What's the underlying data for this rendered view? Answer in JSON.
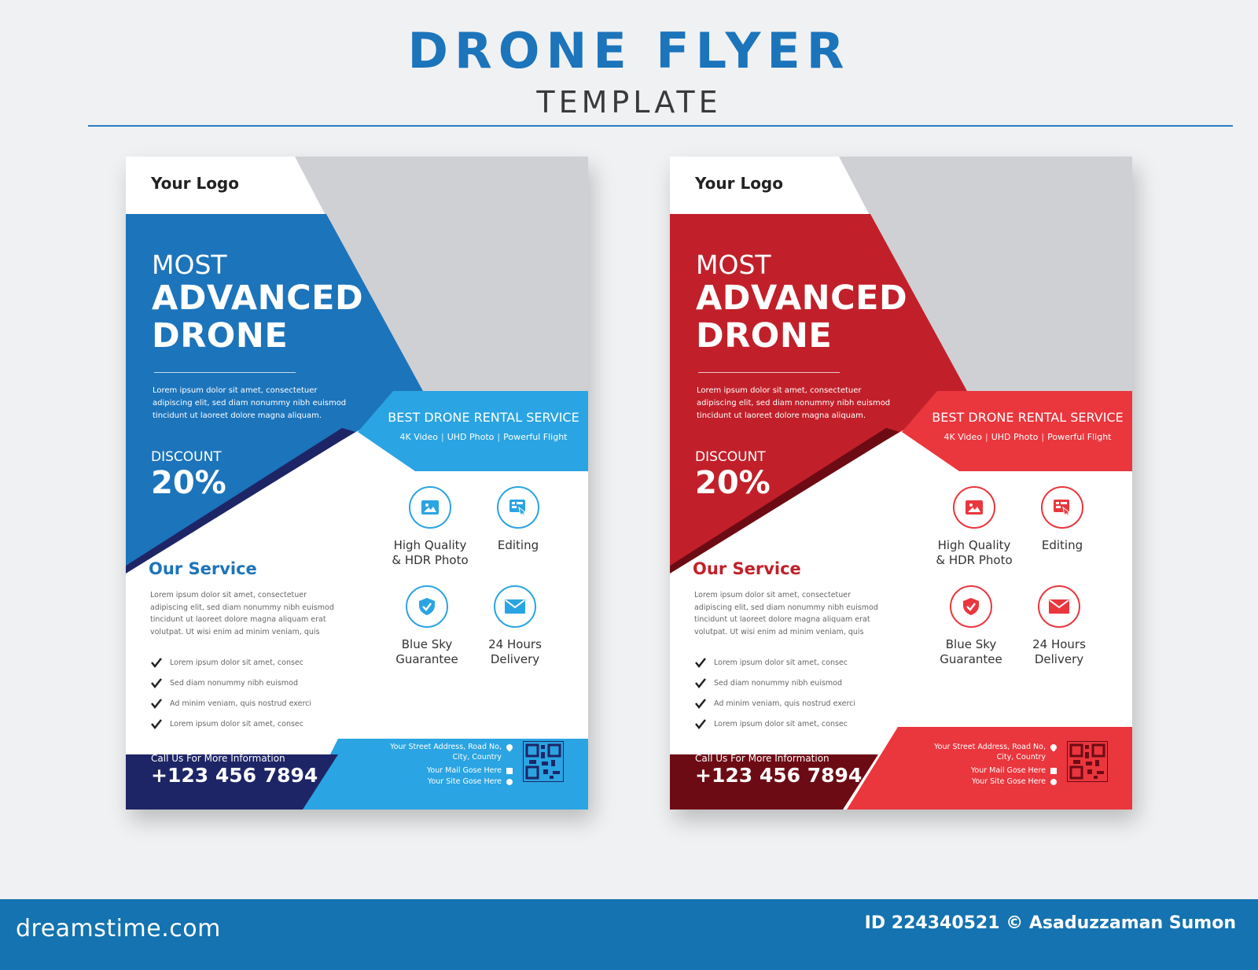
{
  "header": {
    "title": "DRONE FLYER",
    "subtitle": "TEMPLATE"
  },
  "colors": {
    "page_bg": "#f0f1f3",
    "header_blue": "#1c74bb",
    "footer_bar": "#1473b0",
    "blue_primary": "#1c74bb",
    "blue_light": "#2aa4e2",
    "blue_dark": "#1e2566",
    "red_primary": "#c1202a",
    "red_light": "#ea363d",
    "red_dark": "#6d0b15",
    "image_placeholder": "#cfd0d3"
  },
  "flyers": {
    "blue": {
      "logo": "Your Logo",
      "headline_1": "MOST",
      "headline_2": "ADVANCED",
      "headline_3": "DRONE",
      "intro": "Lorem ipsum dolor sit amet, consectetuer adipiscing elit, sed diam nonummy nibh euismod tincidunt ut laoreet dolore magna aliquam.",
      "discount_label": "DISCOUNT",
      "discount_value": "20%",
      "rental_title": "BEST DRONE RENTAL SERVICE",
      "rental_features": [
        "4K Video",
        "UHD Photo",
        "Powerful Flight"
      ],
      "services": [
        {
          "label_1": "High Quality",
          "label_2": "& HDR Photo",
          "icon": "photo-icon"
        },
        {
          "label_1": "Editing",
          "label_2": "",
          "icon": "editing-icon"
        },
        {
          "label_1": "Blue Sky",
          "label_2": "Guarantee",
          "icon": "shield-icon"
        },
        {
          "label_1": "24 Hours",
          "label_2": "Delivery",
          "icon": "envelope-icon"
        }
      ],
      "our_service_title": "Our Service",
      "our_service_text": "Lorem ipsum dolor sit amet, consectetuer adipiscing elit, sed diam nonummy nibh euismod tincidunt ut laoreet dolore magna aliquam erat volutpat. Ut wisi enim ad minim veniam, quis",
      "checklist": [
        "Lorem ipsum dolor sit amet, consec",
        "Sed diam nonummy nibh euismod",
        "Ad minim veniam, quis nostrud exerci",
        "Lorem ipsum dolor sit amet, consec"
      ],
      "call_label": "Call Us For More Information",
      "phone": "+123 456 7894",
      "address_1": "Your Street Address, Road No,",
      "address_2": "City, Country",
      "mail": "Your Mail Gose Here",
      "site": "Your Site Gose Here"
    },
    "red": {
      "logo": "Your Logo",
      "headline_1": "MOST",
      "headline_2": "ADVANCED",
      "headline_3": "DRONE",
      "intro": "Lorem ipsum dolor sit amet, consectetuer adipiscing elit, sed diam nonummy nibh euismod tincidunt ut laoreet dolore magna aliquam.",
      "discount_label": "DISCOUNT",
      "discount_value": "20%",
      "rental_title": "BEST DRONE RENTAL SERVICE",
      "rental_features": [
        "4K Video",
        "UHD Photo",
        "Powerful Flight"
      ],
      "services": [
        {
          "label_1": "High Quality",
          "label_2": "& HDR Photo",
          "icon": "photo-icon"
        },
        {
          "label_1": "Editing",
          "label_2": "",
          "icon": "editing-icon"
        },
        {
          "label_1": "Blue Sky",
          "label_2": "Guarantee",
          "icon": "shield-icon"
        },
        {
          "label_1": "24 Hours",
          "label_2": "Delivery",
          "icon": "envelope-icon"
        }
      ],
      "our_service_title": "Our Service",
      "our_service_text": "Lorem ipsum dolor sit amet, consectetuer adipiscing elit, sed diam nonummy nibh euismod tincidunt ut laoreet dolore magna aliquam erat volutpat. Ut wisi enim ad minim veniam, quis",
      "checklist": [
        "Lorem ipsum dolor sit amet, consec",
        "Sed diam nonummy nibh euismod",
        "Ad minim veniam, quis nostrud exerci",
        "Lorem ipsum dolor sit amet, consec"
      ],
      "call_label": "Call Us For More Information",
      "phone": "+123 456 7894",
      "address_1": "Your Street Address, Road No,",
      "address_2": "City, Country",
      "mail": "Your Mail Gose Here",
      "site": "Your Site Gose Here"
    }
  },
  "footer": {
    "brand": "dreamstime.com",
    "credit": "ID 224340521 © Asaduzzaman Sumon"
  }
}
